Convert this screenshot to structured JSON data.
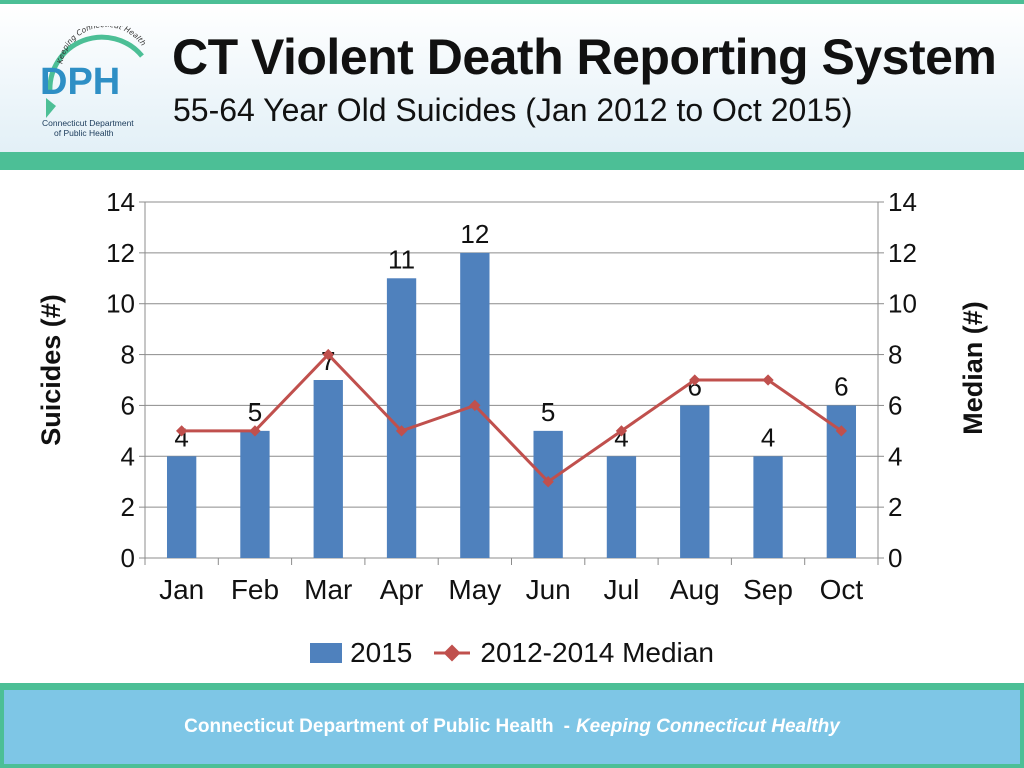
{
  "header": {
    "title": "CT Violent Death Reporting System",
    "subtitle": "55-64 Year Old Suicides (Jan 2012 to Oct 2015)",
    "logo": {
      "text": "DPH",
      "arc_text": "Keeping Connecticut Healthy",
      "caption_line1": "Connecticut Department",
      "caption_line2": "of Public Health"
    }
  },
  "footer": {
    "org": "Connecticut Department of Public Health",
    "separator": "-",
    "tagline": "Keeping Connecticut Healthy"
  },
  "colors": {
    "accent": "#4cbf96",
    "bar": "#4f81bd",
    "line": "#c0504d",
    "footer": "#7ec6e6"
  },
  "chart_data": {
    "type": "bar",
    "categories": [
      "Jan",
      "Feb",
      "Mar",
      "Apr",
      "May",
      "Jun",
      "Jul",
      "Aug",
      "Sep",
      "Oct"
    ],
    "series": [
      {
        "name": "2015",
        "type": "bar",
        "values": [
          4,
          5,
          7,
          11,
          12,
          5,
          4,
          6,
          4,
          6
        ]
      },
      {
        "name": "2012-2014 Median",
        "type": "line",
        "values": [
          5,
          5,
          8,
          5,
          6,
          3,
          5,
          7,
          7,
          5
        ]
      }
    ],
    "ylabel": "Suicides (#)",
    "y2label": "Median (#)",
    "ylim": [
      0,
      14
    ],
    "y2lim": [
      0,
      14
    ],
    "yticks": [
      0,
      2,
      4,
      6,
      8,
      10,
      12,
      14
    ],
    "grid": true,
    "legend": "bottom"
  }
}
